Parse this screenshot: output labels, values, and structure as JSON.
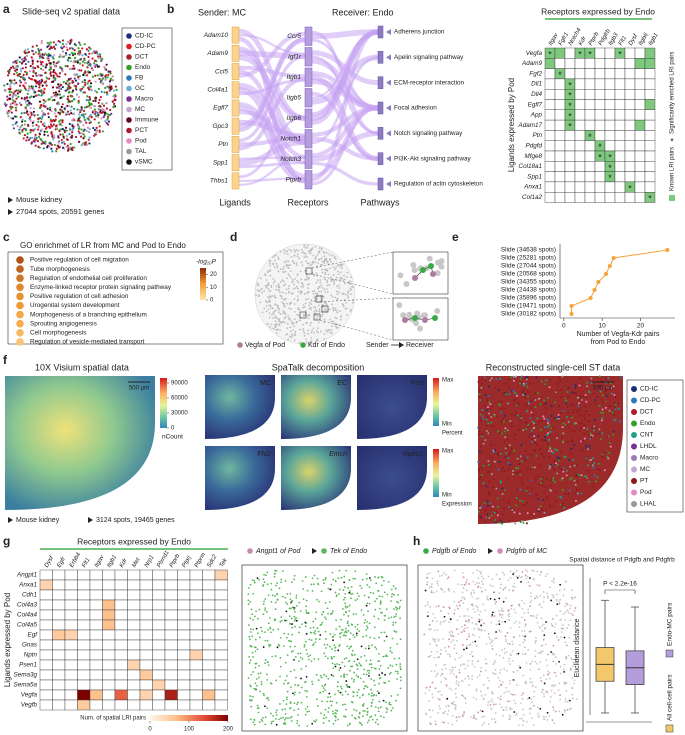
{
  "labels": [
    "a",
    "b",
    "c",
    "d",
    "e",
    "f",
    "g",
    "h"
  ],
  "panel_a": {
    "title": "Slide-seq v2 spatial data",
    "legend": [
      {
        "name": "CD-IC",
        "color": "#1b2f7a"
      },
      {
        "name": "CD-PC",
        "color": "#e31a1c"
      },
      {
        "name": "DCT",
        "color": "#a6232b"
      },
      {
        "name": "Endo",
        "color": "#33a02c"
      },
      {
        "name": "FB",
        "color": "#2b7bba"
      },
      {
        "name": "GC",
        "color": "#6baed6"
      },
      {
        "name": "Macro",
        "color": "#7b3294"
      },
      {
        "name": "MC",
        "color": "#c2a5cf"
      },
      {
        "name": "Immune",
        "color": "#67001f"
      },
      {
        "name": "PCT",
        "color": "#b2182b"
      },
      {
        "name": "Pod",
        "color": "#e78ac3"
      },
      {
        "name": "TAL",
        "color": "#999999"
      },
      {
        "name": "vSMC",
        "color": "#111111"
      }
    ],
    "notes": [
      "Mouse  kidney",
      "27044 spots, 20591 genes"
    ]
  },
  "panel_b": {
    "sender": "Sender: MC",
    "receiver": "Receiver: Endo",
    "ligands": [
      "Adam10",
      "Adam9",
      "Ccl5",
      "Col4a1",
      "Egfl7",
      "Gpc3",
      "Ptn",
      "Spp1",
      "Thbs1"
    ],
    "receptors": [
      "Ccr5",
      "Igf1r",
      "Itgb1",
      "Itgb5",
      "Itgb6",
      "Notch1",
      "Notch3",
      "Ptprb"
    ],
    "pathways": [
      "Adherens junction",
      "Apelin signaling pathway",
      "ECM-receptor interaction",
      "Focal adhesion",
      "Notch signaling pathway",
      "PI3K-Akt signaling pathway",
      "Regulation of actin cytoskeleton"
    ],
    "axis_labels": [
      "Ligands",
      "Receptors",
      "Pathways"
    ]
  },
  "panel_b_heatmap": {
    "title": "Receptors expressed by Endo",
    "ylabel": "Ligands expressed by Pod",
    "columns": [
      "Itgav",
      "Fgfr1",
      "Notch4",
      "Kdr",
      "Ptprb",
      "Pdgfrb",
      "Itgb3",
      "Flt1",
      "Dysf",
      "Itgb6",
      "Itgb1"
    ],
    "rows": [
      "Vegfa",
      "Adam9",
      "Fgf2",
      "Dll1",
      "Dll4",
      "Egfl7",
      "App",
      "Adam17",
      "Ptn",
      "Pdgfd",
      "Mfge8",
      "Col18a1",
      "Spp1",
      "Anxa1",
      "Col1a2"
    ],
    "cells": [
      [
        2,
        1,
        0,
        2,
        2,
        0,
        0,
        2,
        0,
        0,
        1
      ],
      [
        1,
        0,
        0,
        0,
        0,
        0,
        0,
        0,
        0,
        1,
        1
      ],
      [
        0,
        2,
        0,
        0,
        0,
        0,
        0,
        0,
        0,
        0,
        0
      ],
      [
        0,
        0,
        2,
        0,
        0,
        0,
        0,
        0,
        0,
        0,
        0
      ],
      [
        0,
        0,
        2,
        0,
        0,
        0,
        0,
        0,
        0,
        0,
        0
      ],
      [
        0,
        0,
        2,
        0,
        0,
        0,
        0,
        0,
        0,
        0,
        1
      ],
      [
        0,
        0,
        2,
        0,
        0,
        0,
        0,
        0,
        0,
        0,
        0
      ],
      [
        0,
        0,
        2,
        0,
        0,
        0,
        0,
        0,
        0,
        1,
        0
      ],
      [
        0,
        0,
        0,
        0,
        2,
        0,
        0,
        0,
        0,
        0,
        0
      ],
      [
        0,
        0,
        0,
        0,
        0,
        2,
        0,
        0,
        0,
        0,
        0
      ],
      [
        0,
        0,
        0,
        0,
        0,
        2,
        2,
        0,
        0,
        0,
        0
      ],
      [
        0,
        0,
        0,
        0,
        0,
        0,
        2,
        0,
        0,
        0,
        0
      ],
      [
        0,
        0,
        0,
        0,
        0,
        0,
        2,
        0,
        0,
        0,
        0
      ],
      [
        0,
        0,
        0,
        0,
        0,
        0,
        0,
        0,
        2,
        0,
        0
      ],
      [
        0,
        0,
        0,
        0,
        0,
        0,
        0,
        0,
        0,
        0,
        2
      ]
    ],
    "color": "#7fc97f",
    "star": "*",
    "legend": [
      "Known LRI pairs",
      "Significantly enriched LRI pairs"
    ]
  },
  "panel_d": {
    "legend": [
      "Vegfa of Pod",
      "Kdr of Endo",
      "Sender",
      "Receiver"
    ],
    "colors": [
      "#b07a9f",
      "#3aa845"
    ]
  },
  "panel_f": {
    "visium": {
      "title": "10X Visium spatial data",
      "colorbar_ticks": [
        90000,
        60000,
        30000,
        0
      ],
      "colorbar_lim": [
        0,
        100000
      ],
      "colorbar_title": "nCount",
      "scale": "500 μm",
      "notes": [
        "Mouse  kidney",
        "3124 spots, 19465 genes"
      ]
    },
    "decomposition": {
      "title": "SpaTalk decomposition",
      "cell_types": [
        "MC",
        "EC",
        "Pod"
      ],
      "genes": [
        "Fhl2",
        "Emcn",
        "Nphs1"
      ],
      "colorbar1": [
        "Max",
        "Min",
        "Percent"
      ],
      "colorbar2": [
        "Max",
        "Min",
        "Expression"
      ]
    },
    "reconstructed": {
      "title": "Reconstructed single-cell ST data",
      "scale": "500 μm",
      "legend": [
        {
          "name": "CD-IC",
          "color": "#1b2f7a"
        },
        {
          "name": "CD-PC",
          "color": "#2b7bba"
        },
        {
          "name": "DCT",
          "color": "#b2182b"
        },
        {
          "name": "Endo",
          "color": "#33a02c"
        },
        {
          "name": "CNT",
          "color": "#1fa187"
        },
        {
          "name": "LHDL",
          "color": "#7b3294"
        },
        {
          "name": "Macro",
          "color": "#9e7bb5"
        },
        {
          "name": "MC",
          "color": "#c2a5cf"
        },
        {
          "name": "PT",
          "color": "#8b1a1a"
        },
        {
          "name": "Pod",
          "color": "#e78ac3"
        },
        {
          "name": "LHAL",
          "color": "#999999"
        }
      ]
    }
  },
  "panel_g_spatial": {
    "legend": [
      "Angpt1 of Pod",
      "Tek of Endo"
    ],
    "colors": [
      "#c48ab3",
      "#5cb85c"
    ]
  },
  "panel_h_spatial": {
    "legend": [
      "Pdgfb of Endo",
      "Pdgfrb of MC"
    ],
    "colors": [
      "#3aa845",
      "#d48bb8"
    ]
  },
  "chart_data": [
    {
      "type": "dot",
      "title": "GO enrichmet of LR from MC and Pod to Endo",
      "categories": [
        "Positive regulation of cell migration",
        "Tube morphogenesis",
        "Regulation of endothelial cell proliferation",
        "Enzyme-linked receptor protein signaling pathway",
        "Positive regulation of cell adhesion",
        "Urogenital system development",
        "Morphogenesis of a branching epithelium",
        "Sprouting angiogenesis",
        "Cell morphogenesis",
        "Regulation of vesicle-mediated transport"
      ],
      "values": [
        21,
        19,
        17,
        15,
        14,
        13,
        11,
        10,
        8,
        6
      ],
      "colorbar_title": "-log₁₀P",
      "zlim": [
        0,
        25
      ],
      "zticks": [
        0,
        10,
        20
      ],
      "colors": [
        "#fee6a8",
        "#f59e3a",
        "#8c2d04"
      ]
    },
    {
      "type": "line",
      "categories": [
        "Slide (34638 spots)",
        "Slide (25281 spots)",
        "Slide (27044 spots)",
        "Slide (20568 spots)",
        "Slide (34355 spots)",
        "Slide (24438 spots)",
        "Slide (35896 spots)",
        "Slide (19471 spots)",
        "Slide (30182 spots)"
      ],
      "values": [
        27,
        13,
        12,
        11,
        9,
        8,
        7,
        2,
        2
      ],
      "xlim": [
        -1,
        29
      ],
      "xticks": [
        0,
        10,
        20
      ],
      "xlabel": [
        "Number of Vegfa-Kdr pairs",
        "from Pod to Endo"
      ],
      "color": "#f7a23b"
    },
    {
      "type": "heatmap",
      "title": "Receptors expressed by Endo",
      "ylabel": "Ligands expressed by Pod",
      "x": [
        "Dysf",
        "Egfr",
        "Erbb4",
        "Flt1",
        "Itgav",
        "Itgb1",
        "Kdr",
        "Met",
        "Nrp1",
        "Plxnd1",
        "Ptprb",
        "Ptprj",
        "Ptprm",
        "Sdc2",
        "Tek"
      ],
      "y": [
        "Angpt1",
        "Anxa1",
        "Cdh1",
        "Col4a3",
        "Col4a4",
        "Col4a5",
        "Egf",
        "Gnas",
        "Nptn",
        "Psen1",
        "Sema3g",
        "Sema5a",
        "Vegfa",
        "Vegfb"
      ],
      "values": [
        [
          0,
          0,
          0,
          0,
          0,
          0,
          0,
          0,
          0,
          0,
          0,
          0,
          0,
          0,
          40
        ],
        [
          40,
          0,
          0,
          0,
          0,
          0,
          0,
          0,
          0,
          0,
          0,
          0,
          0,
          0,
          0
        ],
        [
          0,
          0,
          0,
          0,
          0,
          0,
          0,
          0,
          0,
          0,
          0,
          0,
          0,
          0,
          0
        ],
        [
          0,
          0,
          0,
          0,
          0,
          60,
          0,
          0,
          0,
          0,
          0,
          0,
          0,
          0,
          0
        ],
        [
          0,
          0,
          0,
          0,
          0,
          60,
          0,
          0,
          0,
          0,
          0,
          0,
          0,
          0,
          0
        ],
        [
          0,
          0,
          0,
          0,
          0,
          60,
          0,
          0,
          0,
          0,
          0,
          0,
          0,
          0,
          0
        ],
        [
          0,
          50,
          40,
          0,
          0,
          0,
          0,
          0,
          0,
          0,
          0,
          0,
          0,
          0,
          0
        ],
        [
          0,
          0,
          0,
          0,
          0,
          0,
          0,
          0,
          0,
          0,
          0,
          0,
          0,
          0,
          0
        ],
        [
          0,
          0,
          0,
          0,
          0,
          0,
          0,
          0,
          0,
          0,
          0,
          0,
          40,
          0,
          0
        ],
        [
          0,
          0,
          0,
          0,
          0,
          0,
          0,
          40,
          0,
          0,
          0,
          0,
          0,
          0,
          0
        ],
        [
          0,
          0,
          0,
          0,
          0,
          0,
          0,
          0,
          50,
          0,
          0,
          0,
          0,
          0,
          0
        ],
        [
          0,
          0,
          0,
          0,
          0,
          0,
          0,
          0,
          0,
          40,
          0,
          0,
          0,
          0,
          0
        ],
        [
          0,
          0,
          0,
          200,
          60,
          0,
          120,
          0,
          40,
          0,
          170,
          0,
          0,
          60,
          0
        ],
        [
          0,
          0,
          0,
          50,
          0,
          0,
          0,
          0,
          0,
          0,
          0,
          0,
          0,
          0,
          0
        ]
      ],
      "colorbar_title": "Num. of spatial LRI pairs",
      "zlim": [
        0,
        200
      ],
      "zticks": [
        0,
        100,
        200
      ],
      "colors": [
        "#fff7ec",
        "#fdbb84",
        "#e34a33",
        "#7f0000"
      ]
    },
    {
      "type": "box",
      "title": "Spatial distance of Pdgfb and Pdgfrb",
      "ylabel": "Euclidean distance",
      "annotation": "P < 2.2e-16",
      "ylim": [
        0,
        20
      ],
      "series": [
        {
          "name": "All cell-cell pairs",
          "color": "#f3c86c",
          "min": 0.3,
          "q1": 5,
          "median": 7.5,
          "q3": 10,
          "max": 17
        },
        {
          "name": "Endo-MC pairs",
          "color": "#b49ddb",
          "min": 0.3,
          "q1": 4.5,
          "median": 7,
          "q3": 9.5,
          "max": 16
        }
      ]
    }
  ]
}
